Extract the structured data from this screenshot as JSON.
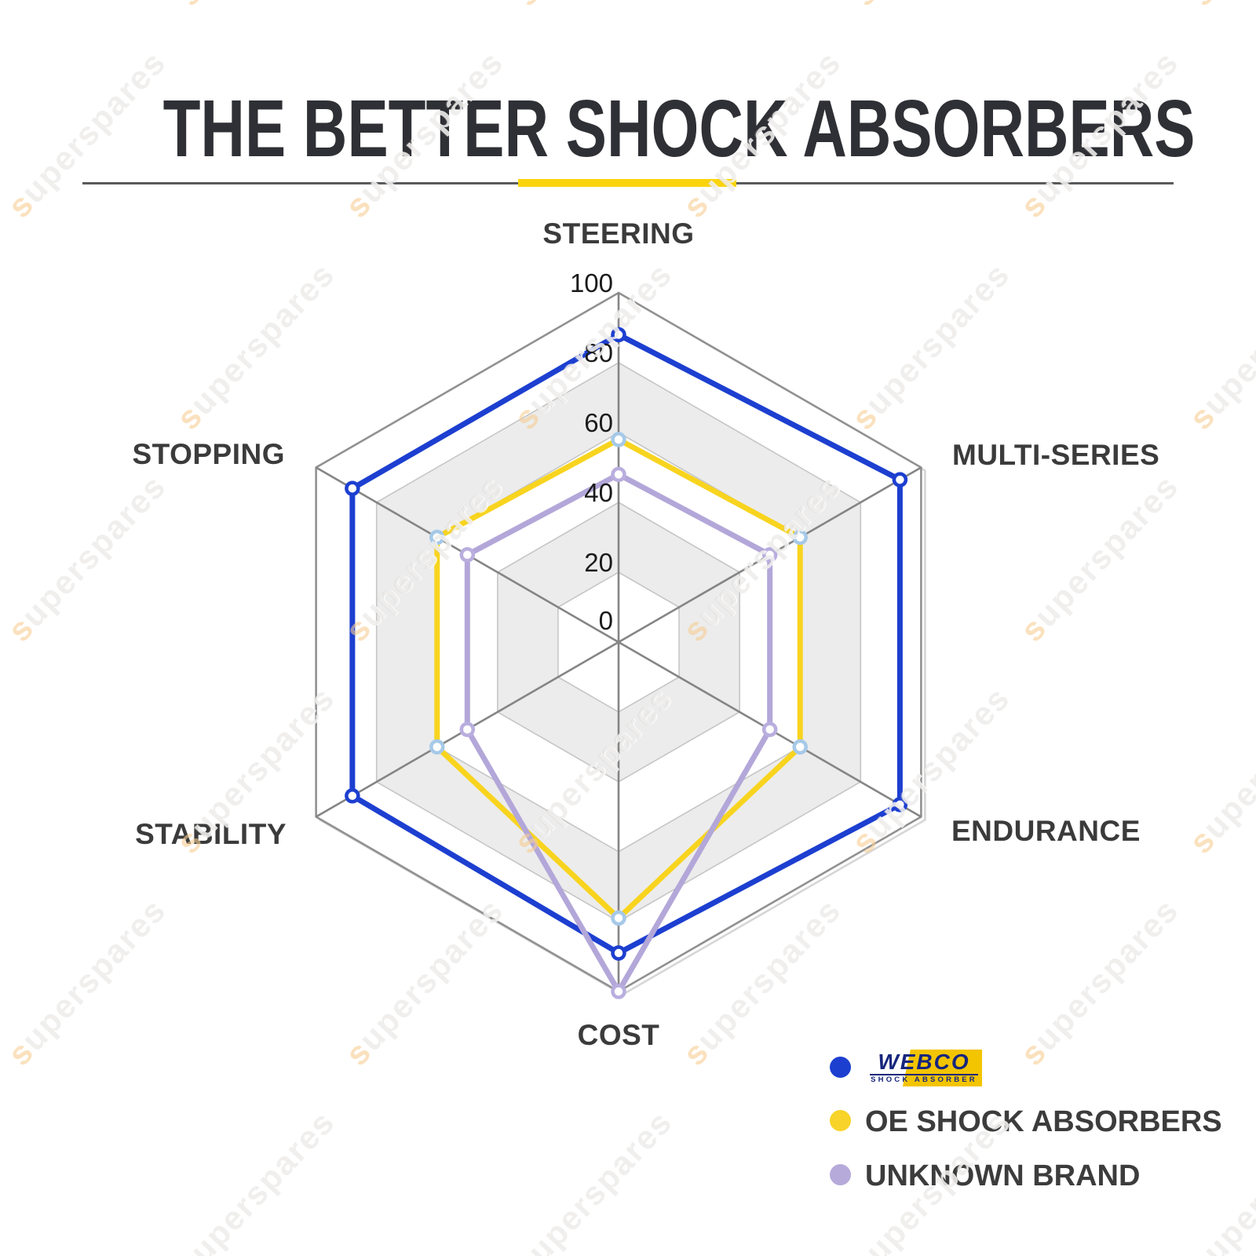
{
  "title": "THE BETTER SHOCK ABSORBERS",
  "divider_accent_color": "#fbd40e",
  "watermark": {
    "text": "superspares",
    "first": "s",
    "rest": "uperspares"
  },
  "chart_data": {
    "type": "radar",
    "categories": [
      "STEERING",
      "MULTI-SERIES",
      "ENDURANCE",
      "COST",
      "STABILITY",
      "STOPPING"
    ],
    "axis_range": [
      0,
      100
    ],
    "ticks": [
      0,
      20,
      40,
      60,
      80,
      100
    ],
    "tick_labels": [
      "100",
      "80",
      "60",
      "40",
      "20",
      "0"
    ],
    "grid": true,
    "grid_fill_alternate": [
      "#ffffff",
      "#ececec"
    ],
    "legend_position": "bottom-right",
    "series": [
      {
        "id": "webco",
        "name": "WEBCO SHOCK ABSORBER",
        "color": "#1d3fd0",
        "marker_ring": "#1d3fd0",
        "values": [
          88,
          93,
          93,
          89,
          88,
          88
        ]
      },
      {
        "id": "oe",
        "name": "OE SHOCK ABSORBERS",
        "color": "#f8d41f",
        "marker_ring": "#a6c9e8",
        "values": [
          58,
          60,
          60,
          79,
          60,
          60
        ]
      },
      {
        "id": "unknown",
        "name": "UNKNOWN BRAND",
        "color": "#b3a7d9",
        "marker_ring": "#b9aede",
        "values": [
          48,
          50,
          50,
          100,
          50,
          50
        ]
      }
    ]
  },
  "legend": {
    "webco_logo": {
      "word": "WEBCO",
      "sub": "SHOCK ABSORBER",
      "blue": "#17267d",
      "yellow": "#f3c400"
    },
    "items": [
      {
        "label": "OE SHOCK ABSORBERS",
        "dot_color": "#f8d329"
      },
      {
        "label": "UNKNOWN BRAND",
        "dot_color": "#b6aadb"
      }
    ]
  }
}
